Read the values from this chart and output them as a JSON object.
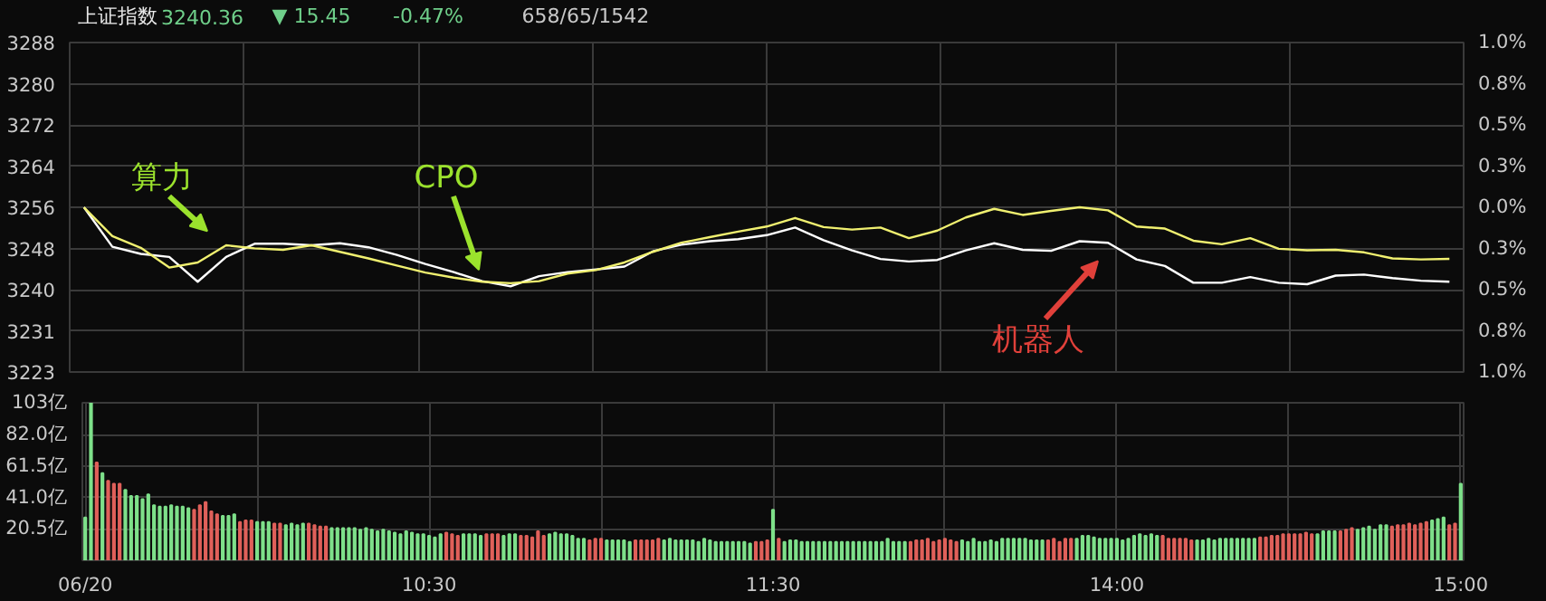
{
  "chart_data": [
    {
      "type": "line",
      "title": "上证指数",
      "annotations": [
        "3240.36",
        "▼ 15.45",
        "-0.47%",
        "658/65/1542",
        "算力",
        "CPO",
        "机器人"
      ],
      "categories": [
        null,
        null,
        null,
        null,
        null,
        null,
        null,
        null,
        null,
        null,
        null,
        null,
        null,
        null,
        null,
        null,
        null,
        null,
        null,
        null,
        null,
        null,
        null,
        null,
        null,
        null,
        null,
        null,
        null,
        null,
        null,
        null,
        null,
        null,
        null,
        null,
        null,
        null,
        null,
        null,
        null,
        null,
        null,
        null,
        null,
        null,
        null,
        null,
        null
      ],
      "series": [
        {
          "color": "#ffffff",
          "values": [
            3255.8,
            3248.0,
            3246.6,
            3246.0,
            3241.1,
            3246.0,
            3248.6,
            3248.6,
            3248.3,
            3248.7,
            3247.9,
            3246.4,
            3244.6,
            3243.0,
            3241.2,
            3240.2,
            3242.2,
            3243.0,
            3243.5,
            3244.1,
            3247.1,
            3248.4,
            3249.1,
            3249.5,
            3250.3,
            3251.8,
            3249.3,
            3247.3,
            3245.6,
            3245.1,
            3245.4,
            3247.3,
            3248.7,
            3247.4,
            3247.2,
            3249.1,
            3248.8,
            3245.5,
            3244.2,
            3240.9,
            3240.9,
            3242.0,
            3240.9,
            3240.6,
            3242.3,
            3242.5,
            3241.8,
            3241.3,
            3241.1
          ]
        },
        {
          "color": "#f0f070",
          "values": [
            3255.8,
            3250.1,
            3247.8,
            3243.9,
            3244.9,
            3248.3,
            3247.7,
            3247.4,
            3248.3,
            3247.0,
            3245.7,
            3244.3,
            3242.9,
            3241.9,
            3241.1,
            3240.8,
            3241.2,
            3242.7,
            3243.4,
            3244.9,
            3247.0,
            3248.8,
            3249.9,
            3251.0,
            3252.0,
            3253.7,
            3251.9,
            3251.4,
            3251.8,
            3249.7,
            3251.2,
            3253.8,
            3255.5,
            3254.3,
            3255.1,
            3255.8,
            3255.2,
            3252.0,
            3251.6,
            3249.2,
            3248.5,
            3249.7,
            3247.6,
            3247.3,
            3247.4,
            3246.9,
            3245.7,
            3245.5,
            3245.6
          ]
        }
      ],
      "ylim": [
        3223.25,
        3288.37
      ],
      "yticks": [
        {
          "value": 3223.25,
          "label": "3223"
        },
        {
          "value": 3231.39,
          "label": "3231"
        },
        {
          "value": 3239.53,
          "label": "3240"
        },
        {
          "value": 3247.67,
          "label": "3248"
        },
        {
          "value": 3255.81,
          "label": "3256"
        },
        {
          "value": 3263.95,
          "label": "3264"
        },
        {
          "value": 3272.09,
          "label": "3272"
        },
        {
          "value": 3280.23,
          "label": "3280"
        },
        {
          "value": 3288.37,
          "label": "3288"
        }
      ],
      "y2lim": [
        -1,
        1
      ],
      "y2ticks": [
        {
          "value": -1,
          "label": "1.0%"
        },
        {
          "value": -0.75,
          "label": "0.8%"
        },
        {
          "value": -0.5,
          "label": "0.5%"
        },
        {
          "value": -0.25,
          "label": "0.3%"
        },
        {
          "value": 0,
          "label": "0.0%"
        },
        {
          "value": 0.25,
          "label": "0.3%"
        },
        {
          "value": 0.5,
          "label": "0.5%"
        },
        {
          "value": 0.75,
          "label": "0.8%"
        },
        {
          "value": 1,
          "label": "1.0%"
        }
      ],
      "tick_labels": "y",
      "grid": true,
      "line_style": "solid"
    },
    {
      "type": "bar",
      "categories": [
        "06/20",
        null,
        null,
        null,
        null,
        null,
        null,
        null,
        null,
        null,
        null,
        null,
        null,
        null,
        null,
        null,
        null,
        null,
        null,
        null,
        null,
        null,
        null,
        null,
        null,
        null,
        null,
        null,
        null,
        null,
        null,
        null,
        null,
        null,
        null,
        null,
        null,
        null,
        null,
        null,
        null,
        null,
        null,
        null,
        null,
        null,
        null,
        null,
        null,
        null,
        null,
        null,
        null,
        null,
        null,
        null,
        null,
        null,
        null,
        null,
        "10:30",
        null,
        null,
        null,
        null,
        null,
        null,
        null,
        null,
        null,
        null,
        null,
        null,
        null,
        null,
        null,
        null,
        null,
        null,
        null,
        null,
        null,
        null,
        null,
        null,
        null,
        null,
        null,
        null,
        null,
        null,
        null,
        null,
        null,
        null,
        null,
        null,
        null,
        null,
        null,
        null,
        null,
        null,
        null,
        null,
        null,
        null,
        null,
        null,
        null,
        null,
        null,
        null,
        null,
        null,
        null,
        null,
        null,
        null,
        null,
        "11:30",
        null,
        null,
        null,
        null,
        null,
        null,
        null,
        null,
        null,
        null,
        null,
        null,
        null,
        null,
        null,
        null,
        null,
        null,
        null,
        null,
        null,
        null,
        null,
        null,
        null,
        null,
        null,
        null,
        null,
        null,
        null,
        null,
        null,
        null,
        null,
        null,
        null,
        null,
        null,
        null,
        null,
        null,
        null,
        null,
        null,
        null,
        null,
        null,
        null,
        null,
        null,
        null,
        null,
        null,
        null,
        null,
        null,
        null,
        null,
        "14:00",
        null,
        null,
        null,
        null,
        null,
        null,
        null,
        null,
        null,
        null,
        null,
        null,
        null,
        null,
        null,
        null,
        null,
        null,
        null,
        null,
        null,
        null,
        null,
        null,
        null,
        null,
        null,
        null,
        null,
        null,
        null,
        null,
        null,
        null,
        null,
        null,
        null,
        null,
        null,
        null,
        null,
        null,
        null,
        null,
        null,
        null,
        null,
        null,
        null,
        null,
        null,
        null,
        null,
        null,
        null,
        null,
        null,
        null,
        null,
        "15:00"
      ],
      "values": [
        28,
        103,
        64,
        57,
        52,
        50,
        50,
        46,
        42,
        42,
        40,
        43,
        36,
        35,
        35,
        36,
        35,
        35,
        34,
        33,
        36,
        38,
        32,
        30,
        29,
        29,
        30,
        25,
        26,
        26,
        25,
        25,
        25,
        24,
        24,
        23,
        24,
        23,
        24,
        24,
        23,
        22,
        22,
        21,
        21,
        21,
        21,
        21,
        20,
        21,
        20,
        19,
        20,
        19,
        18,
        17,
        19,
        18,
        17,
        17,
        16,
        15,
        17,
        18,
        17,
        16,
        17,
        17,
        17,
        16,
        17,
        17,
        17,
        16,
        17,
        17,
        16,
        16,
        15,
        19,
        16,
        17,
        18,
        17,
        17,
        16,
        14,
        14,
        13,
        14,
        14,
        13,
        13,
        13,
        13,
        12,
        13,
        13,
        13,
        13,
        14,
        13,
        14,
        13,
        13,
        13,
        13,
        12,
        14,
        13,
        12,
        12,
        12,
        12,
        12,
        12,
        11,
        12,
        12,
        13,
        33,
        14,
        12,
        13,
        13,
        12,
        12,
        12,
        12,
        12,
        12,
        12,
        12,
        12,
        12,
        12,
        12,
        12,
        12,
        12,
        14,
        12,
        12,
        12,
        12,
        13,
        13,
        14,
        12,
        13,
        14,
        13,
        12,
        13,
        12,
        14,
        12,
        12,
        13,
        12,
        14,
        14,
        14,
        14,
        14,
        13,
        13,
        13,
        13,
        14,
        12,
        14,
        14,
        14,
        16,
        16,
        15,
        14,
        14,
        14,
        14,
        13,
        14,
        16,
        17,
        16,
        17,
        16,
        16,
        14,
        14,
        14,
        14,
        13,
        13,
        13,
        14,
        13,
        14,
        14,
        14,
        14,
        14,
        14,
        14,
        15,
        15,
        16,
        16,
        17,
        17,
        17,
        17,
        18,
        17,
        17,
        19,
        19,
        19,
        19,
        20,
        21,
        20,
        21,
        22,
        20,
        23,
        23,
        22,
        23,
        23,
        24,
        23,
        24,
        25,
        26,
        27,
        28,
        23,
        24,
        50
      ],
      "colors": [
        "#7ee08a",
        "#7ee08a",
        "#e0605a",
        "#7ee08a",
        "#e0605a",
        "#e0605a",
        "#e0605a",
        "#7ee08a",
        "#7ee08a",
        "#7ee08a",
        "#7ee08a",
        "#7ee08a",
        "#7ee08a",
        "#7ee08a",
        "#7ee08a",
        "#7ee08a",
        "#7ee08a",
        "#7ee08a",
        "#7ee08a",
        "#e0605a",
        "#e0605a",
        "#e0605a",
        "#e0605a",
        "#e0605a",
        "#7ee08a",
        "#7ee08a",
        "#7ee08a",
        "#e0605a",
        "#e0605a",
        "#e0605a",
        "#7ee08a",
        "#7ee08a",
        "#7ee08a",
        "#e0605a",
        "#e0605a",
        "#7ee08a",
        "#7ee08a",
        "#7ee08a",
        "#7ee08a",
        "#e0605a",
        "#e0605a",
        "#e0605a",
        "#e0605a",
        "#7ee08a",
        "#7ee08a",
        "#7ee08a",
        "#7ee08a",
        "#7ee08a",
        "#7ee08a",
        "#7ee08a",
        "#7ee08a",
        "#7ee08a",
        "#7ee08a",
        "#7ee08a",
        "#7ee08a",
        "#7ee08a",
        "#7ee08a",
        "#7ee08a",
        "#7ee08a",
        "#7ee08a",
        "#7ee08a",
        "#7ee08a",
        "#7ee08a",
        "#e0605a",
        "#e0605a",
        "#e0605a",
        "#7ee08a",
        "#7ee08a",
        "#7ee08a",
        "#7ee08a",
        "#e0605a",
        "#e0605a",
        "#e0605a",
        "#7ee08a",
        "#7ee08a",
        "#7ee08a",
        "#e0605a",
        "#e0605a",
        "#e0605a",
        "#e0605a",
        "#e0605a",
        "#7ee08a",
        "#7ee08a",
        "#7ee08a",
        "#7ee08a",
        "#7ee08a",
        "#7ee08a",
        "#7ee08a",
        "#e0605a",
        "#e0605a",
        "#e0605a",
        "#7ee08a",
        "#7ee08a",
        "#7ee08a",
        "#7ee08a",
        "#7ee08a",
        "#e0605a",
        "#e0605a",
        "#e0605a",
        "#e0605a",
        "#e0605a",
        "#7ee08a",
        "#7ee08a",
        "#7ee08a",
        "#7ee08a",
        "#7ee08a",
        "#7ee08a",
        "#7ee08a",
        "#7ee08a",
        "#7ee08a",
        "#7ee08a",
        "#7ee08a",
        "#7ee08a",
        "#7ee08a",
        "#7ee08a",
        "#7ee08a",
        "#7ee08a",
        "#e0605a",
        "#e0605a",
        "#e0605a",
        "#7ee08a",
        "#e0605a",
        "#7ee08a",
        "#7ee08a",
        "#7ee08a",
        "#7ee08a",
        "#7ee08a",
        "#7ee08a",
        "#7ee08a",
        "#7ee08a",
        "#7ee08a",
        "#7ee08a",
        "#7ee08a",
        "#7ee08a",
        "#7ee08a",
        "#7ee08a",
        "#7ee08a",
        "#7ee08a",
        "#7ee08a",
        "#7ee08a",
        "#7ee08a",
        "#7ee08a",
        "#7ee08a",
        "#7ee08a",
        "#e0605a",
        "#e0605a",
        "#e0605a",
        "#e0605a",
        "#e0605a",
        "#e0605a",
        "#e0605a",
        "#e0605a",
        "#e0605a",
        "#7ee08a",
        "#7ee08a",
        "#7ee08a",
        "#7ee08a",
        "#7ee08a",
        "#7ee08a",
        "#7ee08a",
        "#7ee08a",
        "#7ee08a",
        "#7ee08a",
        "#7ee08a",
        "#7ee08a",
        "#7ee08a",
        "#7ee08a",
        "#7ee08a",
        "#e0605a",
        "#e0605a",
        "#e0605a",
        "#e0605a",
        "#e0605a",
        "#7ee08a",
        "#7ee08a",
        "#7ee08a",
        "#7ee08a",
        "#7ee08a",
        "#7ee08a",
        "#7ee08a",
        "#7ee08a",
        "#7ee08a",
        "#7ee08a",
        "#7ee08a",
        "#7ee08a",
        "#7ee08a",
        "#7ee08a",
        "#7ee08a",
        "#e0605a",
        "#e0605a",
        "#e0605a",
        "#e0605a",
        "#e0605a",
        "#e0605a",
        "#7ee08a",
        "#7ee08a",
        "#7ee08a",
        "#7ee08a",
        "#7ee08a",
        "#7ee08a",
        "#7ee08a",
        "#7ee08a",
        "#7ee08a",
        "#7ee08a",
        "#7ee08a",
        "#e0605a",
        "#e0605a",
        "#e0605a",
        "#e0605a",
        "#e0605a",
        "#e0605a",
        "#e0605a",
        "#e0605a",
        "#e0605a",
        "#e0605a",
        "#7ee08a",
        "#7ee08a",
        "#7ee08a",
        "#7ee08a",
        "#e0605a",
        "#e0605a",
        "#e0605a",
        "#7ee08a",
        "#7ee08a",
        "#7ee08a",
        "#7ee08a",
        "#7ee08a",
        "#7ee08a",
        "#e0605a",
        "#e0605a",
        "#e0605a",
        "#e0605a",
        "#e0605a",
        "#e0605a",
        "#e0605a",
        "#7ee08a",
        "#7ee08a",
        "#7ee08a",
        "#e0605a",
        "#e0605a",
        "#7ee08a"
      ],
      "ylim": [
        0,
        103
      ],
      "yticks": [
        {
          "value": 20.5,
          "label": "20.5亿"
        },
        {
          "value": 41,
          "label": "41.0亿"
        },
        {
          "value": 61.5,
          "label": "61.5亿"
        },
        {
          "value": 82,
          "label": "82.0亿"
        },
        {
          "value": 103,
          "label": "103亿"
        }
      ],
      "grid": true
    }
  ]
}
